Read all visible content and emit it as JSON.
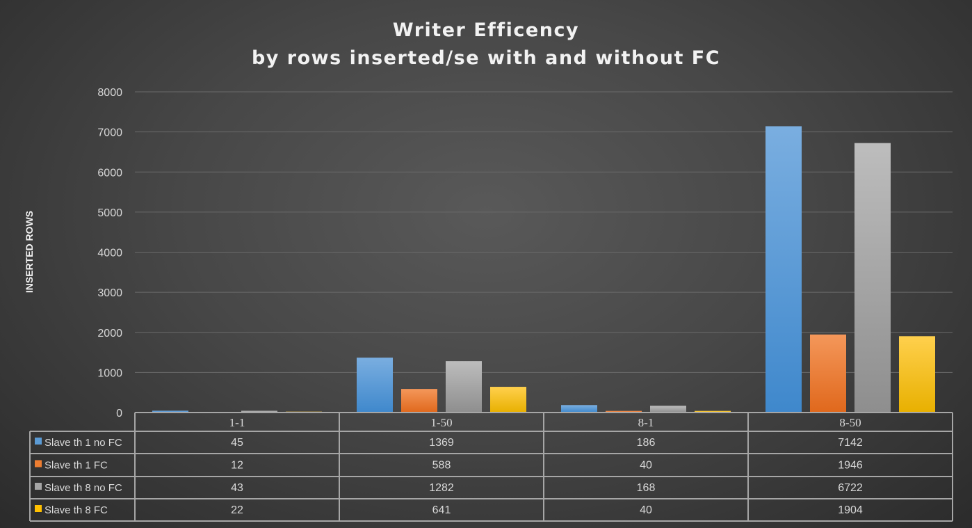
{
  "chart_data": {
    "type": "bar",
    "title": "Writer Efficency",
    "subtitle": "by rows inserted/se with and without FC",
    "xlabel": "",
    "ylabel": "INSERTED ROWS",
    "ylim": [
      0,
      8000
    ],
    "yticks": [
      0,
      1000,
      2000,
      3000,
      4000,
      5000,
      6000,
      7000,
      8000
    ],
    "grid": true,
    "legend": "data-table",
    "categories": [
      "1-1",
      "1-50",
      "8-1",
      "8-50"
    ],
    "series": [
      {
        "name": "Slave th 1 no FC",
        "color": "#5b9bd5",
        "values": [
          45,
          1369,
          186,
          7142
        ]
      },
      {
        "name": "Slave th 1 FC",
        "color": "#ed7d31",
        "values": [
          12,
          588,
          40,
          1946
        ]
      },
      {
        "name": "Slave th 8 no FC",
        "color": "#a5a5a5",
        "values": [
          43,
          1282,
          168,
          6722
        ]
      },
      {
        "name": "Slave th 8 FC",
        "color": "#ffc000",
        "values": [
          22,
          641,
          40,
          1904
        ]
      }
    ]
  }
}
